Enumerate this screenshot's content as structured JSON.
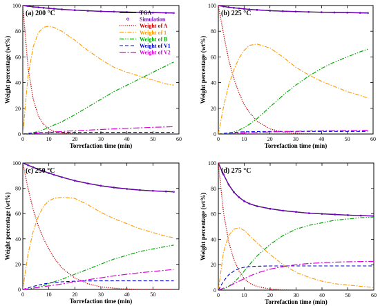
{
  "chart_data": [
    {
      "type": "line",
      "panel_label": "(a) 200 °C",
      "xlabel": "Torrefaction time (min)",
      "ylabel": "Weight percentage (wt%)",
      "xlim": [
        0,
        60
      ],
      "ylim": [
        0,
        100
      ],
      "xticks": [
        0,
        10,
        20,
        30,
        40,
        50,
        60
      ],
      "yticks": [
        0,
        20,
        40,
        60,
        80,
        100
      ],
      "legend_position": "top-right",
      "x": [
        0,
        2,
        4,
        6,
        8,
        10,
        12,
        15,
        20,
        25,
        30,
        35,
        40,
        45,
        50,
        55,
        58
      ],
      "series": [
        {
          "name": "TGA",
          "color": "#000000",
          "style": "solid",
          "values": [
            100,
            99.5,
            99.0,
            98.6,
            98.2,
            97.8,
            97.5,
            97.0,
            96.4,
            95.9,
            95.5,
            95.2,
            94.9,
            94.7,
            94.5,
            94.3,
            94.2
          ]
        },
        {
          "name": "Simulation",
          "color": "#7a00cc",
          "style": "circle-markers",
          "values": [
            100,
            99.5,
            99.0,
            98.6,
            98.2,
            97.8,
            97.5,
            97.0,
            96.4,
            95.9,
            95.5,
            95.2,
            94.9,
            94.7,
            94.5,
            94.3,
            94.2
          ]
        },
        {
          "name": "Weight of A",
          "color": "#cc0000",
          "style": "dotted",
          "values": [
            100,
            52,
            27,
            14,
            7.5,
            4,
            2,
            0.8,
            0.2,
            0,
            0,
            0,
            0,
            0,
            0,
            0,
            0
          ]
        },
        {
          "name": "Weight of 1",
          "color": "#ff9900",
          "style": "dash-dot",
          "values": [
            0,
            45,
            68,
            79,
            83,
            84,
            83,
            80,
            73,
            65,
            58,
            52,
            48,
            45,
            42,
            39,
            38
          ]
        },
        {
          "name": "Weight of B",
          "color": "#00aa00",
          "style": "dash-dot-dot",
          "values": [
            0,
            0.3,
            1,
            2,
            3.5,
            5,
            7,
            9.5,
            15,
            21,
            27,
            33,
            38,
            43,
            48,
            53,
            56
          ]
        },
        {
          "name": "Weight of V1",
          "color": "#0000cc",
          "style": "dashed",
          "values": [
            0,
            0.5,
            0.9,
            1.1,
            1.2,
            1.3,
            1.3,
            1.3,
            1.3,
            1.3,
            1.3,
            1.3,
            1.3,
            1.3,
            1.3,
            1.3,
            1.3
          ]
        },
        {
          "name": "Weight of V2",
          "color": "#dd00dd",
          "style": "long-dash-dot",
          "values": [
            0,
            0.2,
            0.5,
            0.8,
            1.1,
            1.4,
            1.6,
            2,
            2.5,
            3,
            3.5,
            4,
            4.4,
            4.8,
            5.2,
            5.5,
            5.7
          ]
        }
      ]
    },
    {
      "type": "line",
      "panel_label": "(b) 225 °C",
      "xlabel": "Torrefaction time (min)",
      "ylabel": "Weight percentage (wt%)",
      "xlim": [
        0,
        60
      ],
      "ylim": [
        0,
        100
      ],
      "xticks": [
        0,
        10,
        20,
        30,
        40,
        50,
        60
      ],
      "yticks": [
        0,
        20,
        40,
        60,
        80,
        100
      ],
      "x": [
        0,
        2,
        4,
        6,
        8,
        10,
        12,
        15,
        20,
        25,
        30,
        35,
        40,
        45,
        50,
        55,
        58
      ],
      "series": [
        {
          "name": "TGA",
          "color": "#000000",
          "style": "solid",
          "values": [
            100,
            99.3,
            98.7,
            98.2,
            97.8,
            97.4,
            97.0,
            96.6,
            96.0,
            95.6,
            95.3,
            95.0,
            94.8,
            94.6,
            94.5,
            94.3,
            94.2
          ]
        },
        {
          "name": "Simulation",
          "color": "#7a00cc",
          "style": "circle-markers",
          "values": [
            100,
            99.3,
            98.7,
            98.2,
            97.8,
            97.4,
            97.0,
            96.6,
            96.0,
            95.6,
            95.3,
            95.0,
            94.8,
            94.6,
            94.5,
            94.3,
            94.2
          ]
        },
        {
          "name": "Weight of A",
          "color": "#cc0000",
          "style": "dotted",
          "values": [
            100,
            78,
            58,
            43,
            32,
            23,
            17,
            10,
            4,
            1.5,
            0.5,
            0.2,
            0,
            0,
            0,
            0,
            0
          ]
        },
        {
          "name": "Weight of 1",
          "color": "#ff9900",
          "style": "dash-dot",
          "values": [
            0,
            21,
            38,
            50,
            59,
            65,
            69,
            70,
            67,
            60,
            52,
            46,
            41,
            37,
            33,
            30,
            28
          ]
        },
        {
          "name": "Weight of B",
          "color": "#00aa00",
          "style": "dash-dot-dot",
          "values": [
            0,
            0,
            0.5,
            1.5,
            3,
            5,
            7.5,
            12,
            21,
            30,
            38,
            45,
            51,
            56,
            60,
            64,
            66
          ]
        },
        {
          "name": "Weight of V1",
          "color": "#0000cc",
          "style": "dashed",
          "values": [
            0,
            0.5,
            0.9,
            1.2,
            1.5,
            1.7,
            1.8,
            1.9,
            2.0,
            2.0,
            2.0,
            2.0,
            2.0,
            2.0,
            2.0,
            2.0,
            2.0
          ]
        },
        {
          "name": "Weight of V2",
          "color": "#dd00dd",
          "style": "long-dash-dot",
          "values": [
            0,
            0.1,
            0.2,
            0.4,
            0.6,
            0.8,
            1,
            1.2,
            1.6,
            1.9,
            2.1,
            2.3,
            2.5,
            2.6,
            2.7,
            2.8,
            2.9
          ]
        }
      ]
    },
    {
      "type": "line",
      "panel_label": "(c) 250 °C",
      "xlabel": "Torrefaction time (min)",
      "ylabel": "Weight percentage (wt%)",
      "xlim": [
        0,
        60
      ],
      "ylim": [
        0,
        100
      ],
      "xticks": [
        0,
        10,
        20,
        30,
        40,
        50
      ],
      "yticks": [
        0,
        20,
        40,
        60,
        80,
        100
      ],
      "x": [
        0,
        2,
        4,
        6,
        8,
        10,
        12,
        15,
        20,
        25,
        30,
        35,
        40,
        45,
        50,
        55,
        58
      ],
      "series": [
        {
          "name": "TGA",
          "color": "#000000",
          "style": "solid",
          "values": [
            100,
            98.3,
            96.6,
            95.0,
            93.5,
            92.0,
            90.7,
            88.8,
            86.0,
            83.8,
            82.0,
            80.6,
            79.5,
            78.6,
            78.0,
            77.5,
            77.2
          ]
        },
        {
          "name": "Simulation",
          "color": "#7a00cc",
          "style": "circle-markers",
          "values": [
            100,
            98.3,
            96.6,
            95.0,
            93.5,
            92.0,
            90.7,
            88.8,
            86.0,
            83.8,
            82.0,
            80.6,
            79.5,
            78.6,
            78.0,
            77.5,
            77.2
          ]
        },
        {
          "name": "Weight of A",
          "color": "#cc0000",
          "style": "dotted",
          "values": [
            100,
            80,
            63,
            50,
            40,
            32,
            25,
            17,
            9,
            4.5,
            2,
            1,
            0.4,
            0,
            0,
            0,
            0
          ]
        },
        {
          "name": "Weight of 1",
          "color": "#ff9900",
          "style": "dash-dot",
          "values": [
            0,
            28,
            46,
            58,
            66,
            70,
            72,
            73,
            72,
            67,
            61,
            56,
            52,
            48,
            45,
            42,
            41
          ]
        },
        {
          "name": "Weight of B",
          "color": "#00aa00",
          "style": "dash-dot-dot",
          "values": [
            0,
            0.3,
            1,
            2,
            3,
            4.5,
            6,
            8,
            12,
            16,
            20,
            24,
            27,
            30,
            32,
            34,
            35
          ]
        },
        {
          "name": "Weight of V1",
          "color": "#0000cc",
          "style": "dashed",
          "values": [
            0,
            1.2,
            2.4,
            3.4,
            4.3,
            5,
            5.5,
            6,
            6.5,
            6.7,
            6.8,
            6.8,
            6.8,
            6.8,
            6.8,
            6.8,
            6.8
          ]
        },
        {
          "name": "Weight of V2",
          "color": "#dd00dd",
          "style": "long-dash-dot",
          "values": [
            0,
            0.5,
            1,
            1.6,
            2.2,
            2.8,
            3.4,
            4.3,
            6,
            7.7,
            9.2,
            10.7,
            12,
            13.2,
            14.2,
            15.2,
            15.8
          ]
        }
      ]
    },
    {
      "type": "line",
      "panel_label": "(d) 275 °C",
      "xlabel": "Torrefaction time (min)",
      "ylabel": "Weight percentage (wt%)",
      "xlim": [
        0,
        60
      ],
      "ylim": [
        0,
        100
      ],
      "xticks": [
        0,
        10,
        20,
        30,
        40,
        50,
        60
      ],
      "yticks": [
        0,
        20,
        40,
        60,
        80,
        100
      ],
      "x": [
        0,
        2,
        4,
        6,
        8,
        10,
        12,
        15,
        20,
        25,
        30,
        35,
        40,
        45,
        50,
        55,
        60
      ],
      "series": [
        {
          "name": "TGA",
          "color": "#000000",
          "style": "solid",
          "values": [
            100,
            91,
            83,
            77,
            73,
            70,
            68,
            66,
            64,
            62.5,
            61.5,
            60.5,
            60,
            59.5,
            59,
            58.6,
            58.3
          ]
        },
        {
          "name": "Simulation",
          "color": "#7a00cc",
          "style": "circle-markers",
          "values": [
            100,
            91,
            83,
            77,
            73,
            70,
            68,
            66,
            64,
            62.5,
            61.5,
            60.5,
            60,
            59.5,
            59,
            58.6,
            58.3
          ]
        },
        {
          "name": "Weight of A",
          "color": "#cc0000",
          "style": "dotted",
          "values": [
            100,
            61,
            38,
            24,
            15,
            9,
            5.5,
            2.8,
            0.8,
            0.2,
            0,
            0,
            0,
            0,
            0,
            0,
            0
          ]
        },
        {
          "name": "Weight of 1",
          "color": "#ff9900",
          "style": "dash-dot",
          "values": [
            0,
            30,
            43,
            48,
            49,
            47,
            43,
            37,
            28,
            20,
            14,
            10,
            7,
            5,
            4,
            3,
            2
          ]
        },
        {
          "name": "Weight of B",
          "color": "#00aa00",
          "style": "dash-dot-dot",
          "values": [
            0,
            1,
            3,
            6,
            10,
            15,
            20,
            27,
            36,
            43,
            48,
            51,
            53,
            55,
            56,
            57,
            57.5
          ]
        },
        {
          "name": "Weight of V1",
          "color": "#0000cc",
          "style": "dashed",
          "values": [
            0,
            7,
            12,
            15,
            17,
            18,
            18.5,
            18.8,
            19,
            19,
            19,
            19,
            19,
            19,
            19,
            19,
            19
          ]
        },
        {
          "name": "Weight of V2",
          "color": "#dd00dd",
          "style": "long-dash-dot",
          "values": [
            0,
            1.5,
            3,
            5,
            7,
            9,
            11,
            13.5,
            16.5,
            18.5,
            20,
            21,
            21.5,
            22,
            22.3,
            22.5,
            22.6
          ]
        }
      ]
    }
  ]
}
